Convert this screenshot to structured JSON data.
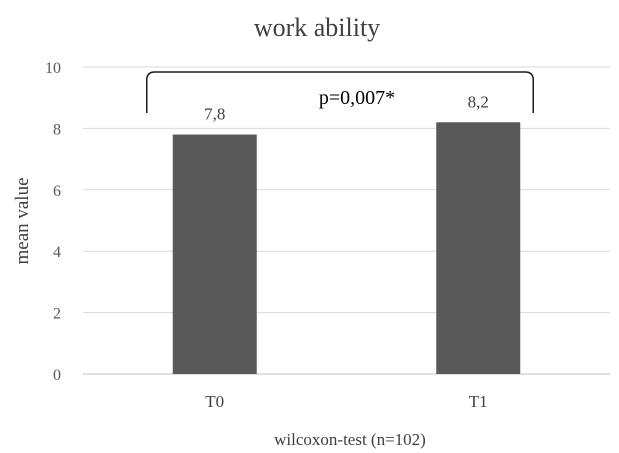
{
  "chart_data": {
    "type": "bar",
    "title": "work ability",
    "xlabel": "wilcoxon-test (n=102)",
    "ylabel": "mean value",
    "categories": [
      "T0",
      "T1"
    ],
    "values": [
      7.8,
      8.2
    ],
    "data_labels": [
      "7,8",
      "8,2"
    ],
    "ylim": [
      0,
      10
    ],
    "yticks": [
      0,
      2,
      4,
      6,
      8,
      10
    ],
    "grid": true,
    "legend": "none",
    "bar_color": "#595959",
    "annotation": "p=0,007*"
  }
}
